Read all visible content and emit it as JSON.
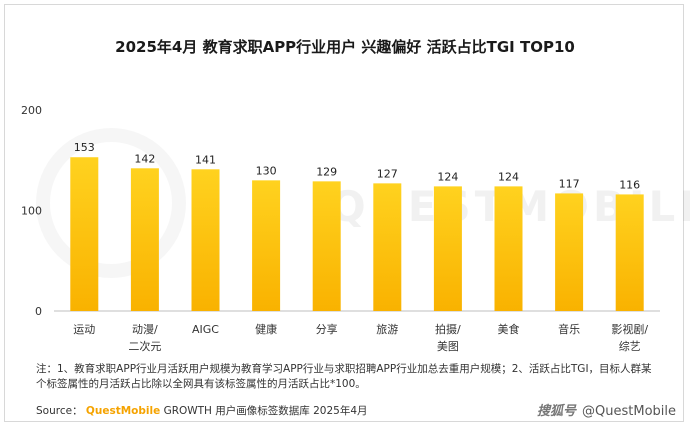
{
  "title": "2025年4月 教育求职APP行业用户 兴趣偏好 活跃占比TGI TOP10",
  "chart_data": {
    "type": "bar",
    "categories": [
      "运动",
      "动漫/\n二次元",
      "AIGC",
      "健康",
      "分享",
      "旅游",
      "拍摄/\n美图",
      "美食",
      "音乐",
      "影视剧/\n综艺"
    ],
    "values": [
      153,
      142,
      141,
      130,
      129,
      127,
      124,
      124,
      117,
      116
    ],
    "yticks": [
      0,
      100,
      200
    ],
    "ylim": [
      0,
      200
    ],
    "xlabel": "",
    "ylabel": "",
    "grid": false,
    "data_labels": true,
    "colors": {
      "bar_top": "#ffd21f",
      "bar_bottom": "#f9b200",
      "axis": "#bfbfbf"
    }
  },
  "note": "注：1、教育求职APP行业月活跃用户规模为教育学习APP行业与求职招聘APP行业加总去重用户规模；2、活跃占比TGI，目标人群某个标签属性的月活跃占比除以全网具有该标签属性的月活跃占比*100。",
  "source": {
    "label": "Source：",
    "brand": "QuestMobile",
    "text": "GROWTH 用户画像标签数据库 2025年4月"
  },
  "watermark": {
    "logo": "搜狐号",
    "handle": "@QuestMobile",
    "background": "QUESTMOBILE"
  }
}
